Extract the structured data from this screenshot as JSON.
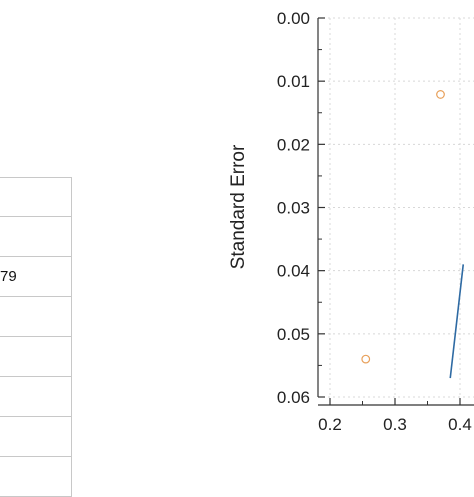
{
  "table": {
    "rows": [
      "",
      "",
      "79",
      "",
      "",
      "",
      "",
      ""
    ]
  },
  "chart_data": {
    "type": "scatter",
    "title": "",
    "xlabel": "",
    "ylabel": "Standard Error",
    "x_ticks": [
      "0.2",
      "0.3",
      "0.4"
    ],
    "y_ticks": [
      "0.00",
      "0.01",
      "0.02",
      "0.03",
      "0.04",
      "0.05",
      "0.06"
    ],
    "xlim": [
      0.2,
      0.4
    ],
    "ylim": [
      0.0,
      0.06
    ],
    "y_inverted": true,
    "grid": true,
    "points": [
      {
        "x": 0.37,
        "y": 0.0121
      },
      {
        "x": 0.255,
        "y": 0.054
      }
    ],
    "lines": [
      {
        "x": [
          0.385,
          0.405
        ],
        "y": [
          0.057,
          0.039
        ]
      }
    ],
    "colors": {
      "points": "#e8a05a",
      "line": "#2e6aa3",
      "axis": "#333333",
      "grid": "#d8d8d8"
    }
  }
}
